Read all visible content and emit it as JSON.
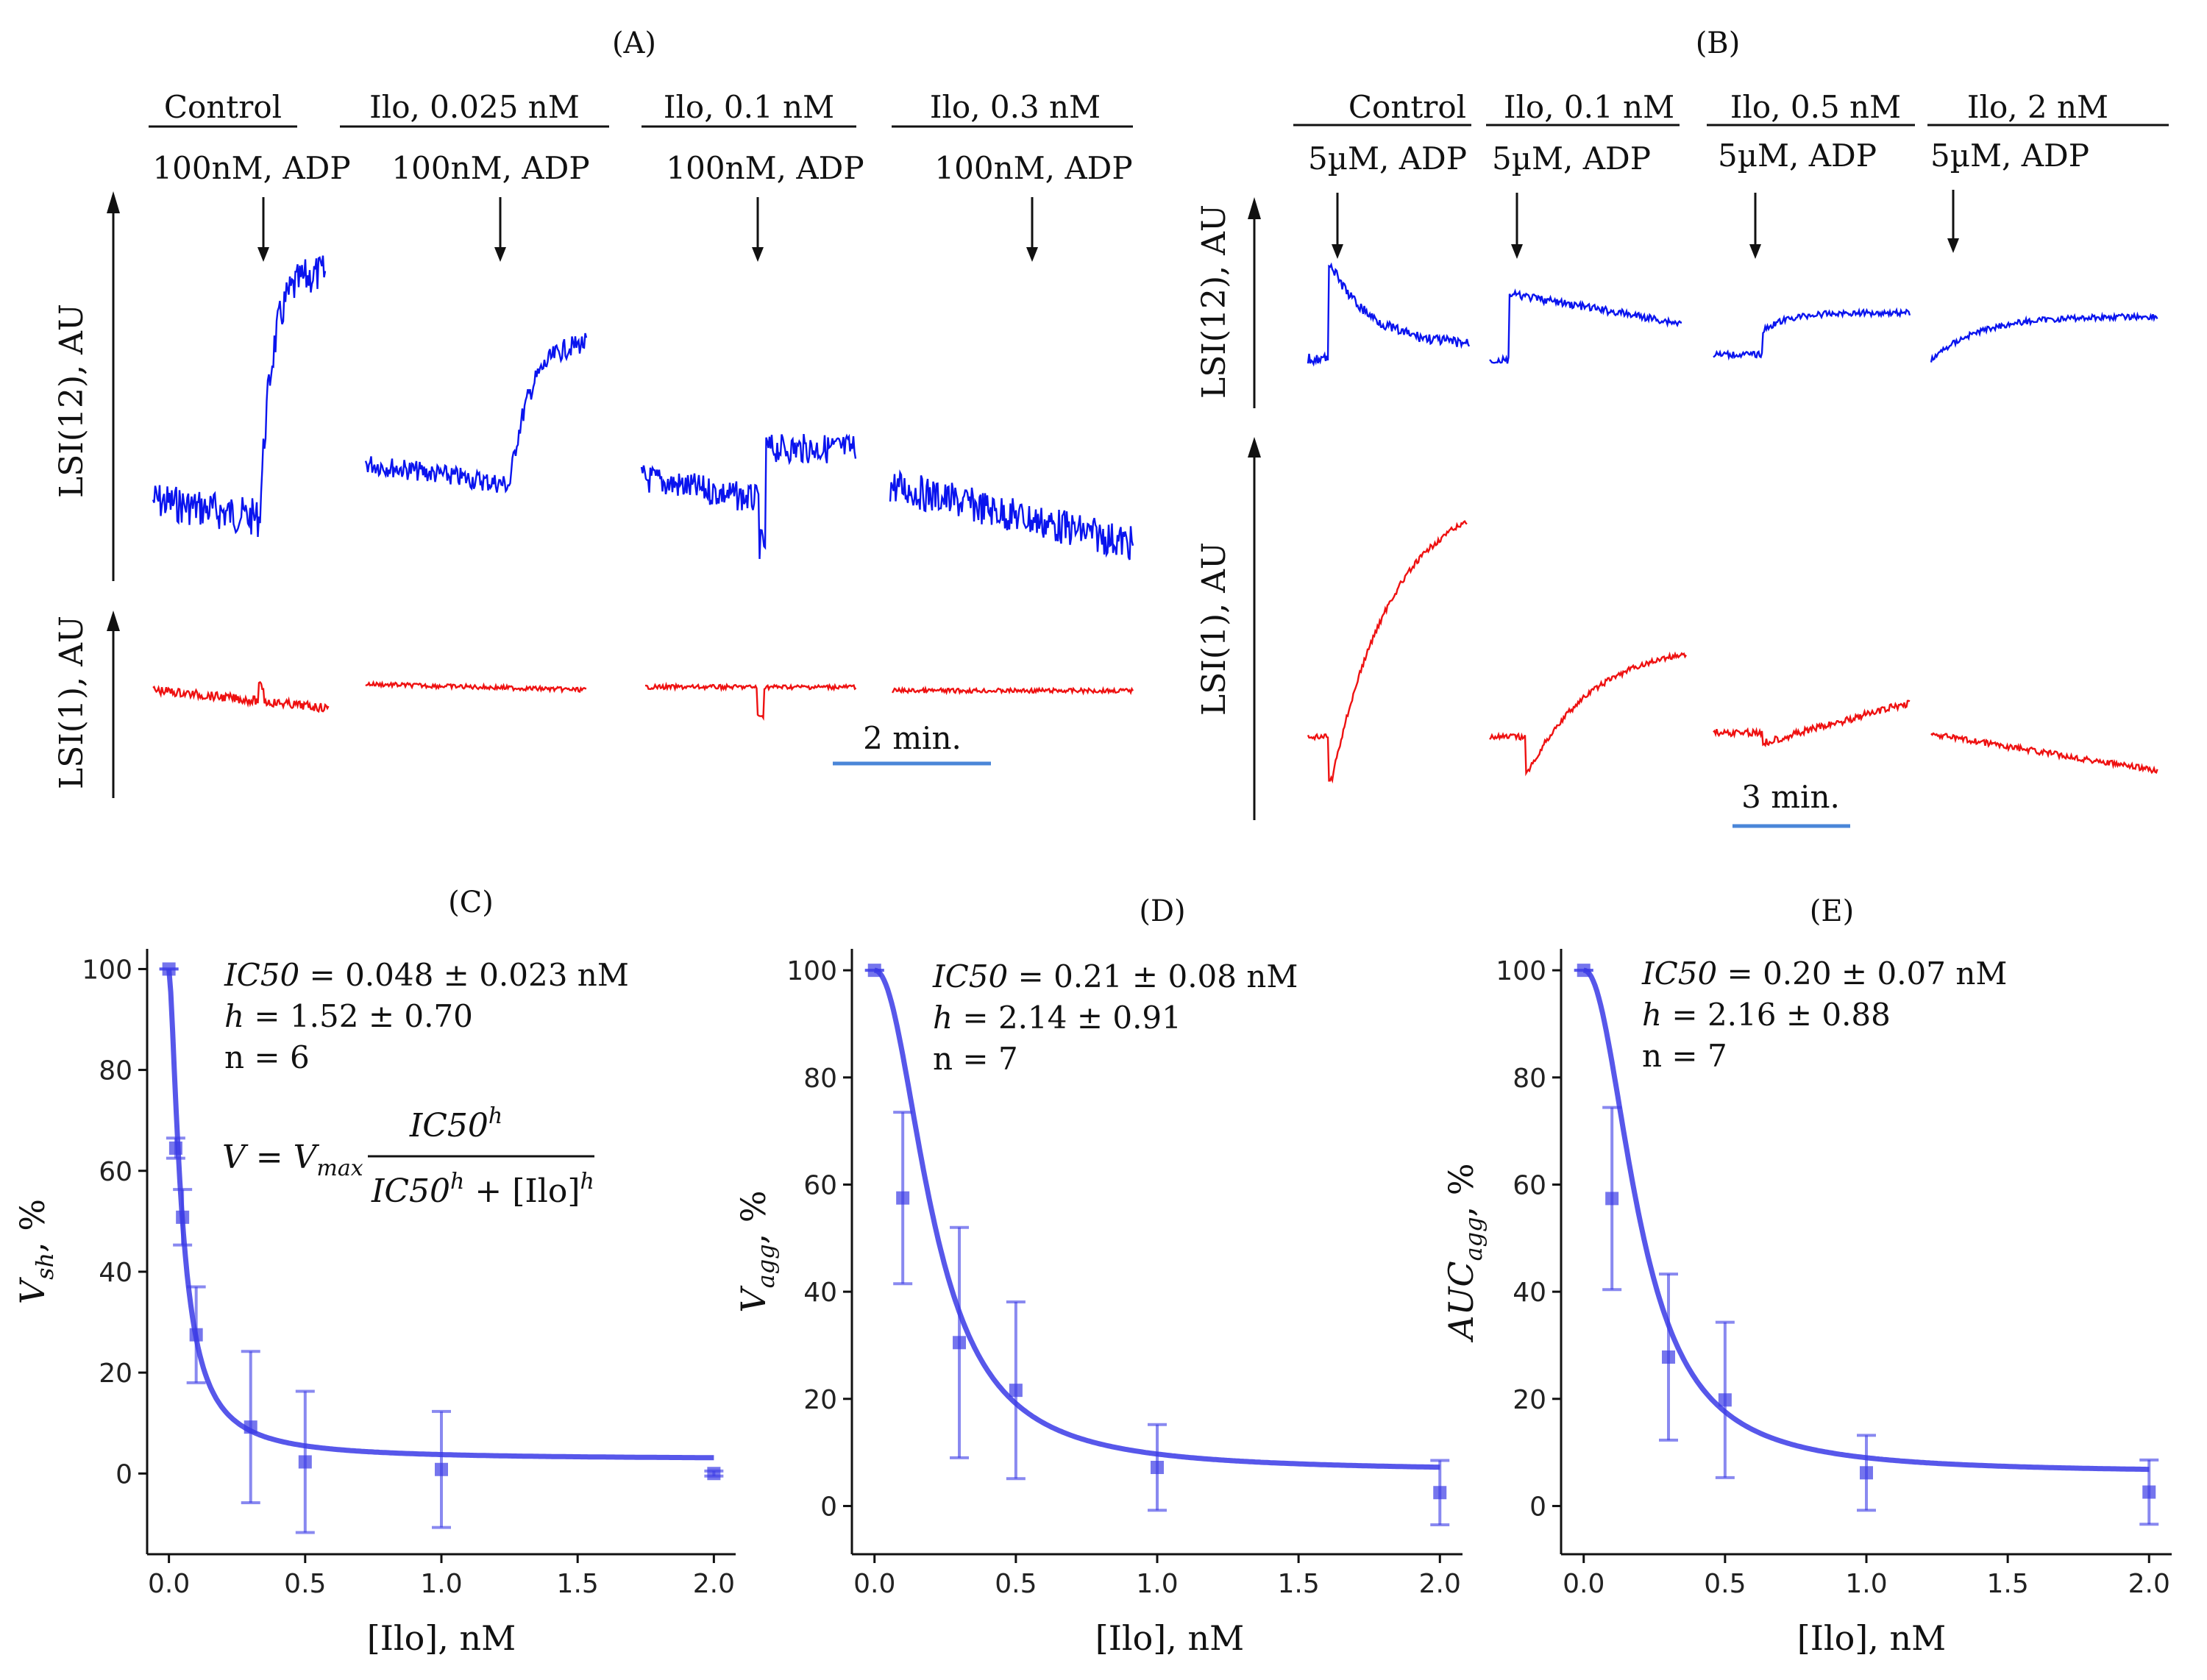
{
  "figure": {
    "panel_A": {
      "label": "(A)",
      "y_label_top": "LSI(12), AU",
      "y_label_bottom": "LSI(1), AU",
      "groups": [
        {
          "header": "Control",
          "stimulus": "100nM, ADP"
        },
        {
          "header": "Ilo, 0.025 nM",
          "stimulus": "100nM, ADP"
        },
        {
          "header": "Ilo, 0.1 nM",
          "stimulus": "100nM, ADP"
        },
        {
          "header": "Ilo, 0.3 nM",
          "stimulus": "100nM, ADP"
        }
      ],
      "scale_bar": "2 min."
    },
    "panel_B": {
      "label": "(B)",
      "y_label_top": "LSI(12), AU",
      "y_label_bottom": "LSI(1), AU",
      "groups": [
        {
          "header": "Control",
          "stimulus": "5µM, ADP"
        },
        {
          "header": "Ilo, 0.1 nM",
          "stimulus": "5µM, ADP"
        },
        {
          "header": "Ilo, 0.5 nM",
          "stimulus": "5µM, ADP"
        },
        {
          "header": "Ilo, 2 nM",
          "stimulus": "5µM, ADP"
        }
      ],
      "scale_bar": "3 min."
    },
    "colors": {
      "lsi12": "#0a14ee",
      "lsi1": "#ee1111",
      "scale_bar": "#4a86d8",
      "fit": "#3a3ae6"
    }
  },
  "chart_data": [
    {
      "panel": "(C)",
      "type": "scatter",
      "title": "(C)",
      "xlabel": "[Ilo], nM",
      "ylabel_main": "V",
      "ylabel_sub": "sh",
      "ylabel_tail": ", %",
      "x": [
        0,
        0.025,
        0.05,
        0.1,
        0.3,
        0.5,
        1.0,
        2.0
      ],
      "y": [
        100,
        64.5,
        50.8,
        27.5,
        9.2,
        2.3,
        0.8,
        0
      ],
      "err": [
        0,
        2,
        5.5,
        9.5,
        15,
        14,
        11.5,
        0.5
      ],
      "fit": {
        "ic50": 0.048,
        "h": 1.52,
        "ymin": 2.8
      },
      "annotations": {
        "ic50_label": "IC50",
        "ic50_value": " = 0.048 ± 0.023 nM",
        "h_label": "h",
        "h_value": " = 1.52 ± 0.70",
        "n": "n = 6"
      },
      "equation": {
        "lhs": "V = V",
        "lhs_sub": "max",
        "numerator": "IC50",
        "denominator_a": "IC50",
        "denominator_b": " + [Ilo]",
        "exponent": "h"
      },
      "xticks": [
        0.0,
        0.5,
        1.0,
        1.5,
        2.0
      ],
      "xtick_labels": [
        "0.0",
        "0.5",
        "1.0",
        "1.5",
        "2.0"
      ],
      "yticks": [
        0,
        20,
        40,
        60,
        80,
        100
      ],
      "ytick_labels": [
        "0",
        "20",
        "40",
        "60",
        "80",
        "100"
      ],
      "xlim": [
        -0.08,
        2.08
      ],
      "ylim": [
        -16,
        104
      ]
    },
    {
      "panel": "(D)",
      "type": "scatter",
      "title": "(D)",
      "xlabel": "[Ilo], nM",
      "ylabel_main": "V",
      "ylabel_sub": "agg",
      "ylabel_tail": ", %",
      "x": [
        0,
        0.1,
        0.3,
        0.5,
        1.0,
        2.0
      ],
      "y": [
        100,
        57.5,
        30.5,
        21.6,
        7.2,
        2.5
      ],
      "err": [
        0,
        16,
        21.5,
        16.5,
        8,
        6
      ],
      "fit": {
        "ic50": 0.21,
        "h": 2.14,
        "ymin": 6.5
      },
      "annotations": {
        "ic50_label": "IC50",
        "ic50_value": " = 0.21 ± 0.08 nM",
        "h_label": "h",
        "h_value": " = 2.14 ± 0.91",
        "n": "n = 7"
      },
      "xticks": [
        0.0,
        0.5,
        1.0,
        1.5,
        2.0
      ],
      "xtick_labels": [
        "0.0",
        "0.5",
        "1.0",
        "1.5",
        "2.0"
      ],
      "yticks": [
        0,
        20,
        40,
        60,
        80,
        100
      ],
      "ytick_labels": [
        "0",
        "20",
        "40",
        "60",
        "80",
        "100"
      ],
      "xlim": [
        -0.08,
        2.08
      ],
      "ylim": [
        -9,
        104
      ]
    },
    {
      "panel": "(E)",
      "type": "scatter",
      "title": "(E)",
      "xlabel": "[Ilo], nM",
      "ylabel_main": "AUC",
      "ylabel_sub": "agg",
      "ylabel_tail": ", %",
      "x": [
        0,
        0.1,
        0.3,
        0.5,
        1.0,
        2.0
      ],
      "y": [
        100,
        57.4,
        27.8,
        19.8,
        6.2,
        2.6
      ],
      "err": [
        0,
        17,
        15.5,
        14.5,
        7,
        6
      ],
      "fit": {
        "ic50": 0.2,
        "h": 2.16,
        "ymin": 6.2
      },
      "annotations": {
        "ic50_label": "IC50",
        "ic50_value": " = 0.20 ± 0.07 nM",
        "h_label": "h",
        "h_value": " = 2.16 ± 0.88",
        "n": "n = 7"
      },
      "xticks": [
        0.0,
        0.5,
        1.0,
        1.5,
        2.0
      ],
      "xtick_labels": [
        "0.0",
        "0.5",
        "1.0",
        "1.5",
        "2.0"
      ],
      "yticks": [
        0,
        20,
        40,
        60,
        80,
        100
      ],
      "ytick_labels": [
        "0",
        "20",
        "40",
        "60",
        "80",
        "100"
      ],
      "xlim": [
        -0.08,
        2.08
      ],
      "ylim": [
        -9,
        104
      ]
    }
  ]
}
